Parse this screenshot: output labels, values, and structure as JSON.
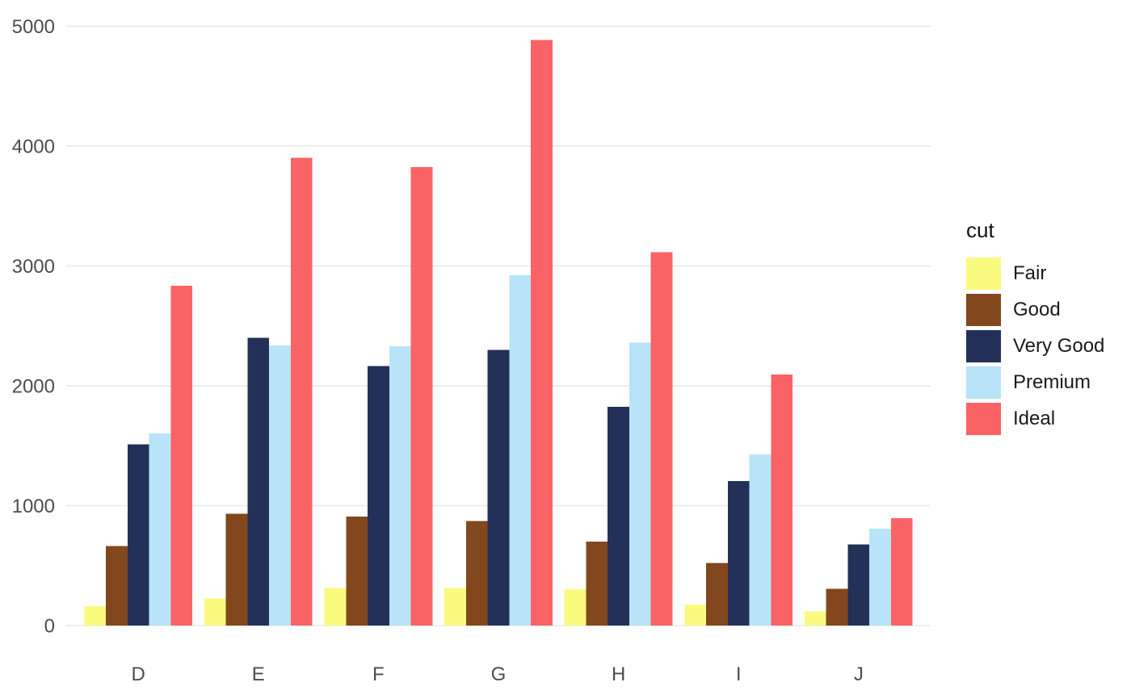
{
  "chart_data": {
    "type": "bar",
    "title": "",
    "xlabel": "",
    "ylabel": "",
    "legend_title": "cut",
    "legend_position": "right",
    "grid": "horizontal-major-only",
    "categories": [
      "D",
      "E",
      "F",
      "G",
      "H",
      "I",
      "J"
    ],
    "series": [
      {
        "name": "Fair",
        "color": "#FAFA7E",
        "values": [
          163,
          224,
          312,
          314,
          303,
          175,
          119
        ]
      },
      {
        "name": "Good",
        "color": "#82471C",
        "values": [
          662,
          933,
          909,
          871,
          702,
          522,
          307
        ]
      },
      {
        "name": "Very Good",
        "color": "#233159",
        "values": [
          1513,
          2400,
          2164,
          2299,
          1824,
          1204,
          678
        ]
      },
      {
        "name": "Premium",
        "color": "#B8E3F8",
        "values": [
          1603,
          2337,
          2331,
          2924,
          2360,
          1428,
          808
        ]
      },
      {
        "name": "Ideal",
        "color": "#F96366",
        "values": [
          2834,
          3903,
          3826,
          4884,
          3115,
          2093,
          896
        ]
      }
    ],
    "y_ticks": [
      0,
      1000,
      2000,
      3000,
      4000,
      5000
    ],
    "ylim": [
      0,
      5230
    ],
    "colors": {
      "background": "#FFFFFF",
      "gridline": "#ECECEC",
      "axis_text": "#4D4D4D",
      "legend_title_text": "#111111",
      "legend_label_text": "#1A1A1A"
    }
  }
}
